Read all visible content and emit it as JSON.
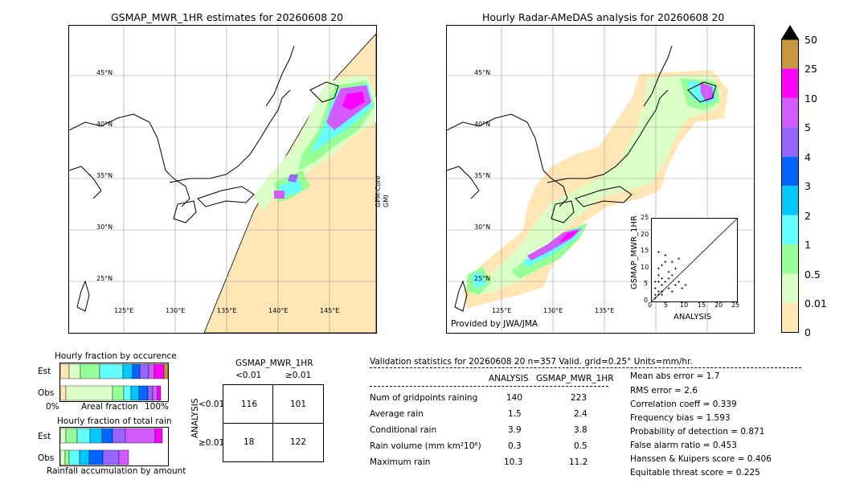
{
  "left_map": {
    "title": "GSMAP_MWR_1HR estimates for 20260608 20",
    "lat_labels": [
      "45°N",
      "40°N",
      "35°N",
      "30°N",
      "25°N"
    ],
    "lon_labels": [
      "125°E",
      "130°E",
      "135°E",
      "140°E",
      "145°E"
    ],
    "side_label_1": "GPM-Core",
    "side_label_2": "GMI"
  },
  "right_map": {
    "title": "Hourly Radar-AMeDAS analysis for 20260608 20",
    "lat_labels": [
      "45°N",
      "40°N",
      "35°N",
      "30°N",
      "25°N"
    ],
    "lon_labels": [
      "125°E",
      "130°E",
      "135°E"
    ],
    "credit": "Provided by JWA/JMA"
  },
  "scatter": {
    "xlabel": "ANALYSIS",
    "ylabel": "GSMAP_MWR_1HR",
    "ticks": [
      "0",
      "5",
      "10",
      "15",
      "20",
      "25"
    ]
  },
  "colorbar": {
    "labels": [
      "50",
      "25",
      "10",
      "5",
      "4",
      "3",
      "2",
      "1",
      "0.5",
      "0.01",
      "0"
    ],
    "colors": [
      "#c8963c",
      "#ff00ff",
      "#d25aff",
      "#9664ff",
      "#0064ff",
      "#00c8ff",
      "#64ffff",
      "#96ff96",
      "#dcffc8",
      "#ffe6b4"
    ]
  },
  "fraction_occurrence": {
    "title": "Hourly fraction by occurence",
    "row_est": "Est",
    "row_obs": "Obs",
    "axis_left": "0%",
    "axis_mid": "Areal fraction",
    "axis_right": "100%"
  },
  "fraction_total": {
    "title": "Hourly fraction of total rain",
    "row_est": "Est",
    "row_obs": "Obs",
    "footer": "Rainfall accumulation by amount"
  },
  "contingency": {
    "header": "GSMAP_MWR_1HR",
    "col_lt": "<0.01",
    "col_ge": "≥0.01",
    "row_axis": "ANALYSIS",
    "row_lt": "<0.01",
    "row_ge": "≥0.01",
    "cells": [
      "116",
      "101",
      "18",
      "122"
    ]
  },
  "validation": {
    "header": "Validation statistics for 20260608 20  n=357 Valid. grid=0.25° Units=mm/hr.",
    "col_analysis": "ANALYSIS",
    "col_gsmap": "GSMAP_MWR_1HR",
    "rows": [
      {
        "label": "Num of gridpoints raining",
        "analysis": "140",
        "gsmap": "223"
      },
      {
        "label": "Average rain",
        "analysis": "1.5",
        "gsmap": "2.4"
      },
      {
        "label": "Conditional rain",
        "analysis": "3.9",
        "gsmap": "3.8"
      },
      {
        "label": "Rain volume (mm km²10⁶)",
        "analysis": "0.3",
        "gsmap": "0.5"
      },
      {
        "label": "Maximum rain",
        "analysis": "10.3",
        "gsmap": "11.2"
      }
    ],
    "scores": [
      "Mean abs error =    1.7",
      "RMS error =    2.6",
      "Correlation coeff =  0.339",
      "Frequency bias =  1.593",
      "Probability of detection =  0.871",
      "False alarm ratio =  0.453",
      "Hanssen & Kuipers score =  0.406",
      "Equitable threat score =  0.225"
    ]
  }
}
